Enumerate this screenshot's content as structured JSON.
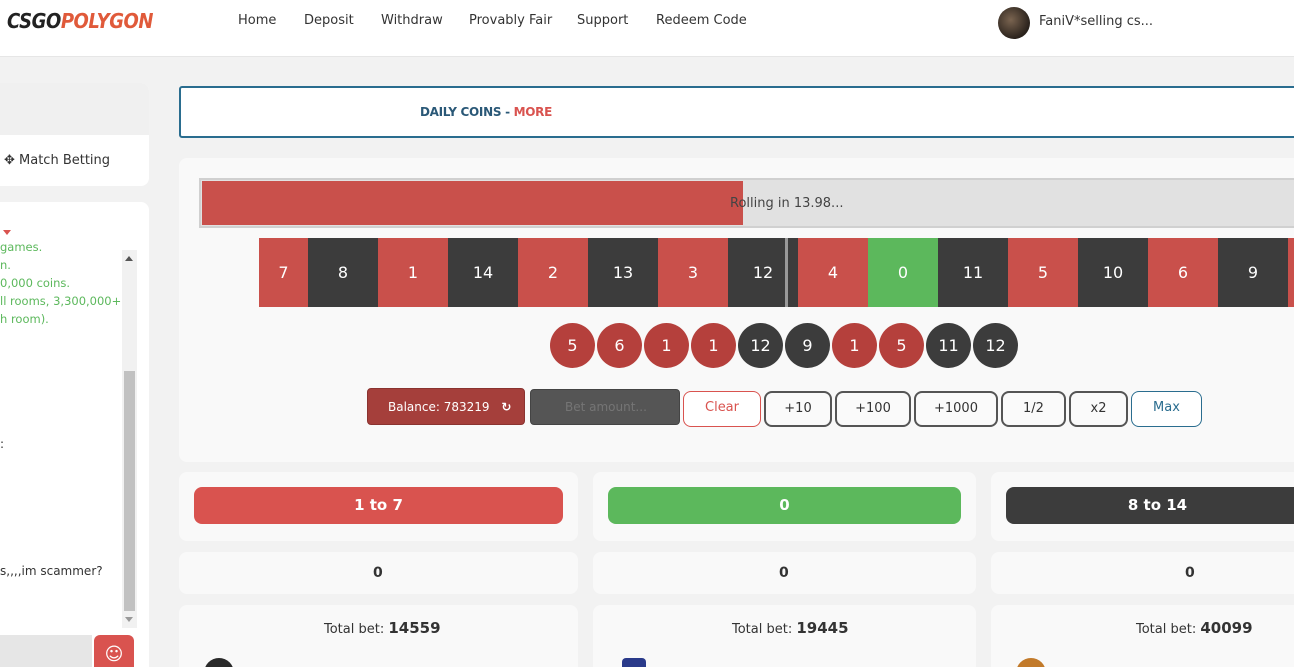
{
  "header": {
    "logo_part1": "CSGO",
    "logo_part2": "POLYGON",
    "nav": [
      "Home",
      "Deposit",
      "Withdraw",
      "Provably Fair",
      "Support",
      "Redeem Code"
    ],
    "username": "FaniV*selling cs..."
  },
  "sidebar": {
    "match_betting_label": "✥ Match Betting",
    "chat_lines": [
      "games.",
      "n.",
      "0,000 coins.",
      "ll rooms, 3,300,000+",
      "h room)."
    ],
    "chat_line_colon": ":",
    "chat_last": "s,,,,im scammer?"
  },
  "daily": {
    "label": "DAILY COINS",
    "separator": " - ",
    "more": "MORE"
  },
  "roll": {
    "status": "Rolling in 13.98...",
    "progress": 0.49,
    "strip": [
      {
        "n": "7",
        "c": "red"
      },
      {
        "n": "8",
        "c": "black"
      },
      {
        "n": "1",
        "c": "red"
      },
      {
        "n": "14",
        "c": "black"
      },
      {
        "n": "2",
        "c": "red"
      },
      {
        "n": "13",
        "c": "black"
      },
      {
        "n": "3",
        "c": "red"
      },
      {
        "n": "12",
        "c": "black"
      },
      {
        "n": "4",
        "c": "red"
      },
      {
        "n": "0",
        "c": "green"
      },
      {
        "n": "11",
        "c": "black"
      },
      {
        "n": "5",
        "c": "red"
      },
      {
        "n": "10",
        "c": "black"
      },
      {
        "n": "6",
        "c": "red"
      },
      {
        "n": "9",
        "c": "black"
      },
      {
        "n": "",
        "c": "red"
      }
    ],
    "history": [
      {
        "n": "5",
        "c": "red"
      },
      {
        "n": "6",
        "c": "red"
      },
      {
        "n": "1",
        "c": "red"
      },
      {
        "n": "1",
        "c": "red"
      },
      {
        "n": "12",
        "c": "black"
      },
      {
        "n": "9",
        "c": "black"
      },
      {
        "n": "1",
        "c": "red"
      },
      {
        "n": "5",
        "c": "red"
      },
      {
        "n": "11",
        "c": "black"
      },
      {
        "n": "12",
        "c": "black"
      }
    ]
  },
  "controls": {
    "balance_label": "Balance: 783219",
    "refresh_glyph": "↻",
    "bet_placeholder": "Bet amount...",
    "buttons": [
      "Clear",
      "+10",
      "+100",
      "+1000",
      "1/2",
      "x2",
      "Max"
    ]
  },
  "bets": [
    {
      "label": "1 to 7",
      "amount": "0",
      "total_label": "Total bet: ",
      "total": "14559"
    },
    {
      "label": "0",
      "amount": "0",
      "total_label": "Total bet: ",
      "total": "19445"
    },
    {
      "label": "8 to 14",
      "amount": "0",
      "total_label": "Total bet: ",
      "total": "40099"
    }
  ],
  "colors": {
    "red": "#c9504b",
    "black": "#3c3c3c",
    "green": "#5cb85c",
    "accent_blue": "#2a6d8f"
  }
}
